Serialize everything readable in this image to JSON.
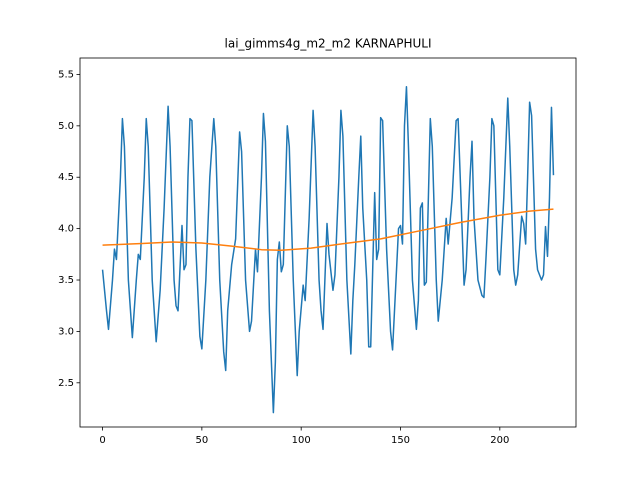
{
  "chart_data": {
    "type": "line",
    "title": "lai_gimms4g_m2_m2 KARNAPHULI",
    "xlim": [
      -11.35,
      238.35
    ],
    "xticks": [
      0,
      50,
      100,
      150,
      200
    ],
    "ylim": [
      2.07,
      5.66
    ],
    "yticks": [
      2.5,
      {
        "value": 3.0,
        "label": "3.0"
      },
      3.5,
      {
        "value": 4.0,
        "label": "4.0"
      },
      4.5,
      {
        "value": 5.0,
        "label": "5.0"
      },
      5.5
    ],
    "series": [
      {
        "color": "#1f77b4",
        "x": [
          0,
          2,
          3,
          5,
          6,
          7,
          9,
          10,
          11,
          13,
          15,
          17,
          18,
          19,
          21,
          22,
          23,
          25,
          27,
          29,
          31,
          33,
          34,
          36,
          37,
          38,
          40,
          41,
          42,
          43,
          44,
          45,
          47,
          49,
          50,
          52,
          54,
          56,
          57,
          59,
          61,
          62,
          63,
          65,
          67,
          69,
          70,
          72,
          74,
          75,
          77,
          78,
          80,
          81,
          82,
          84,
          86,
          87,
          88,
          89,
          90,
          91,
          93,
          94,
          96,
          98,
          99,
          101,
          102,
          104,
          106,
          107,
          109,
          110,
          111,
          113,
          114,
          116,
          117,
          119,
          120,
          121,
          123,
          125,
          126,
          127,
          129,
          130,
          131,
          133,
          134,
          135,
          137,
          138,
          139,
          140,
          141,
          143,
          145,
          146,
          148,
          149,
          150,
          151,
          152,
          153,
          154,
          156,
          158,
          159,
          160,
          161,
          162,
          163,
          165,
          166,
          168,
          169,
          171,
          173,
          174,
          176,
          178,
          179,
          181,
          182,
          183,
          185,
          186,
          187,
          189,
          191,
          192,
          193,
          195,
          196,
          197,
          199,
          200,
          202,
          204,
          205,
          207,
          208,
          209,
          211,
          212,
          213,
          214,
          215,
          216,
          218,
          219,
          221,
          222,
          223,
          224,
          225,
          226,
          227
        ],
        "values": [
          3.6,
          3.2,
          3.02,
          3.5,
          3.8,
          3.7,
          4.5,
          5.07,
          4.8,
          3.5,
          2.94,
          3.5,
          3.75,
          3.7,
          4.5,
          5.07,
          4.8,
          3.5,
          2.9,
          3.4,
          4.2,
          5.19,
          4.8,
          3.5,
          3.25,
          3.2,
          4.03,
          3.6,
          3.65,
          4.5,
          5.07,
          5.05,
          3.8,
          2.95,
          2.83,
          3.5,
          4.5,
          5.07,
          4.8,
          3.5,
          2.8,
          2.62,
          3.2,
          3.65,
          3.9,
          4.94,
          4.75,
          3.5,
          3.0,
          3.1,
          3.8,
          3.58,
          4.5,
          5.12,
          4.85,
          3.2,
          2.21,
          2.7,
          3.7,
          3.87,
          3.58,
          3.65,
          5.0,
          4.8,
          3.5,
          2.57,
          3.0,
          3.45,
          3.3,
          4.1,
          5.15,
          4.8,
          3.5,
          3.2,
          3.02,
          4.05,
          3.75,
          3.4,
          3.55,
          4.5,
          5.15,
          4.9,
          3.5,
          2.78,
          3.3,
          3.65,
          4.5,
          4.9,
          4.2,
          3.5,
          2.85,
          2.85,
          4.35,
          3.7,
          3.8,
          5.08,
          5.05,
          3.8,
          3.0,
          2.82,
          3.6,
          4.0,
          4.03,
          3.85,
          5.0,
          5.38,
          4.8,
          3.5,
          3.02,
          3.3,
          4.2,
          4.25,
          3.45,
          3.48,
          5.07,
          4.8,
          3.5,
          3.1,
          3.5,
          4.1,
          3.85,
          4.3,
          5.05,
          5.07,
          4.0,
          3.45,
          3.6,
          4.5,
          4.85,
          4.1,
          3.5,
          3.35,
          3.33,
          3.7,
          4.5,
          5.07,
          5.0,
          3.6,
          3.55,
          4.3,
          5.27,
          4.8,
          3.6,
          3.45,
          3.55,
          4.12,
          4.05,
          3.85,
          4.5,
          5.23,
          5.1,
          3.8,
          3.6,
          3.5,
          3.55,
          4.02,
          3.73,
          4.3,
          5.18,
          4.52
        ]
      },
      {
        "color": "#ff7f0e",
        "x": [
          0,
          20,
          35,
          50,
          65,
          80,
          90,
          105,
          120,
          140,
          160,
          180,
          200,
          215,
          227
        ],
        "values": [
          3.84,
          3.855,
          3.87,
          3.86,
          3.83,
          3.795,
          3.79,
          3.81,
          3.85,
          3.9,
          3.98,
          4.06,
          4.13,
          4.17,
          4.19
        ]
      }
    ]
  }
}
